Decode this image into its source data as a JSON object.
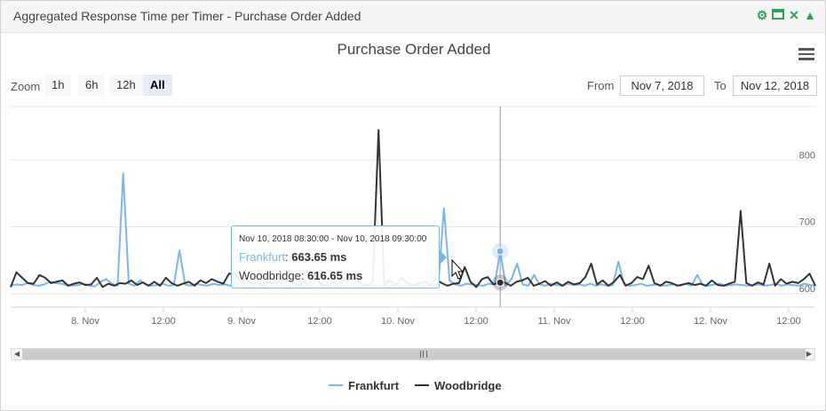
{
  "header": {
    "title": "Aggregated Response Time per Timer - Purchase Order Added"
  },
  "toolbar": {
    "zoom_label": "Zoom",
    "zoom_options": [
      "1h",
      "6h",
      "12h",
      "All"
    ],
    "zoom_selected": "All",
    "from_label": "From",
    "from_value": "Nov 7, 2018",
    "to_label": "To",
    "to_value": "Nov 12, 2018"
  },
  "colors": {
    "frankfurt": "#7cb5ec",
    "woodbridge": "#333333",
    "accent": "#2ea05a"
  },
  "tooltip": {
    "header": "Nov 10, 2018 08:30:00 - Nov 10, 2018 09:30:00",
    "frankfurt_label": "Frankfurt",
    "frankfurt_value": "663.65 ms",
    "woodbridge_label": "Woodbridge",
    "woodbridge_value": "616.65 ms"
  },
  "chart_data": {
    "type": "line",
    "title": "Purchase Order Added",
    "x_ticks": [
      "8. Nov",
      "12:00",
      "9. Nov",
      "12:00",
      "10. Nov",
      "12:00",
      "11. Nov",
      "12:00",
      "12. Nov",
      "12:00"
    ],
    "y_ticks": [
      600,
      700,
      800
    ],
    "ylim": [
      580,
      880
    ],
    "x_range": [
      "2018-11-07 12:00",
      "2018-11-12 12:00"
    ],
    "grid": true,
    "legend": "bottom-center",
    "series": [
      {
        "name": "Frankfurt",
        "values": [
          612,
          614,
          613,
          616,
          613,
          612,
          614,
          618,
          616,
          615,
          613,
          612,
          613,
          615,
          612,
          611,
          618,
          622,
          615,
          612,
          780,
          615,
          612,
          620,
          614,
          612,
          613,
          615,
          612,
          613,
          665,
          614,
          612,
          615,
          613,
          612,
          615,
          613,
          614,
          612,
          613,
          616,
          612,
          613,
          614,
          612,
          615,
          635,
          614,
          612,
          613,
          615,
          612,
          613,
          615,
          612,
          614,
          613,
          612,
          616,
          613,
          615,
          612,
          614,
          612,
          613,
          615,
          620,
          612,
          614,
          613,
          615,
          612,
          613,
          614,
          612,
          614,
          728,
          620,
          614,
          612,
          615,
          614,
          613,
          612,
          615,
          614,
          663.65,
          612,
          622,
          645,
          614,
          612,
          628,
          614,
          612,
          615,
          613,
          612,
          615,
          613,
          614,
          612,
          615,
          612,
          614,
          612,
          613,
          648,
          615,
          612,
          613,
          615,
          612,
          613,
          614,
          612,
          613,
          614,
          612,
          615,
          612,
          628,
          613,
          612,
          614,
          615,
          612,
          613,
          614,
          613,
          612,
          613,
          614,
          612,
          613,
          615,
          612,
          614,
          613,
          612,
          615,
          613,
          612
        ]
      },
      {
        "name": "Woodbridge",
        "values": [
          610,
          632,
          624,
          616,
          615,
          628,
          624,
          616,
          618,
          620,
          612,
          615,
          617,
          613,
          614,
          624,
          610,
          615,
          612,
          616,
          615,
          620,
          613,
          617,
          612,
          618,
          612,
          624,
          616,
          612,
          615,
          618,
          612,
          620,
          616,
          622,
          618,
          615,
          630,
          629,
          618,
          622,
          614,
          617,
          612,
          618,
          614,
          622,
          620,
          616,
          612,
          618,
          615,
          628,
          614,
          612,
          617,
          615,
          622,
          620,
          624,
          615,
          612,
          618,
          845,
          612,
          620,
          613,
          624,
          616,
          612,
          615,
          618,
          613,
          622,
          616,
          612,
          615,
          616,
          640,
          618,
          610,
          622,
          625,
          614,
          617,
          616.65,
          612,
          618,
          620,
          624,
          612,
          615,
          619,
          612,
          617,
          612,
          618,
          614,
          616,
          625,
          645,
          614,
          620,
          612,
          618,
          628,
          612,
          616,
          625,
          622,
          642,
          616,
          612,
          618,
          616,
          612,
          614,
          616,
          613,
          615,
          612,
          620,
          613,
          612,
          615,
          618,
          724,
          616,
          612,
          617,
          614,
          645,
          612,
          622,
          615,
          618,
          616,
          622,
          630,
          612
        ]
      }
    ]
  }
}
